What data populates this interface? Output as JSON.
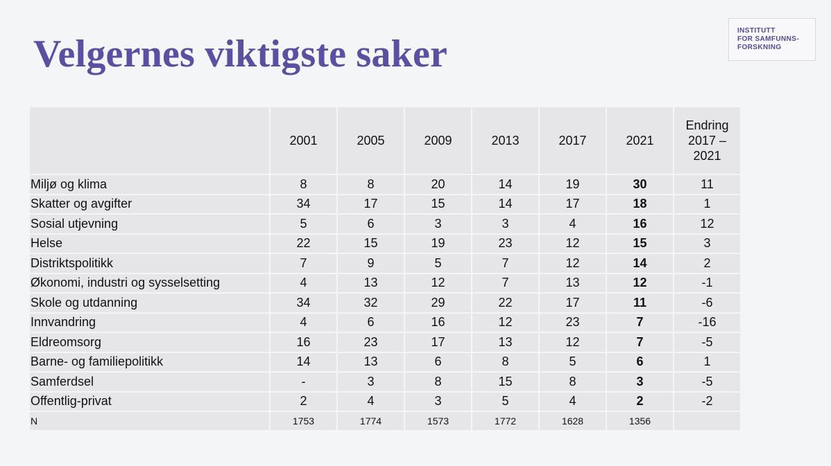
{
  "title": "Velgernes viktigste saker",
  "logo": {
    "lines": [
      "INSTITUTT",
      "FOR SAMFUNNS-",
      "FORSKNING"
    ]
  },
  "table": {
    "years": [
      "2001",
      "2005",
      "2009",
      "2013",
      "2017",
      "2021"
    ],
    "change_header": [
      "Endring",
      "2017 –",
      "2021"
    ],
    "rows": [
      {
        "label": "Miljø og klima",
        "values": [
          "8",
          "8",
          "20",
          "14",
          "19",
          "30"
        ],
        "change": "11"
      },
      {
        "label": "Skatter og avgifter",
        "values": [
          "34",
          "17",
          "15",
          "14",
          "17",
          "18"
        ],
        "change": "1"
      },
      {
        "label": "Sosial utjevning",
        "values": [
          "5",
          "6",
          "3",
          "3",
          "4",
          "16"
        ],
        "change": "12"
      },
      {
        "label": "Helse",
        "values": [
          "22",
          "15",
          "19",
          "23",
          "12",
          "15"
        ],
        "change": "3"
      },
      {
        "label": "Distriktspolitikk",
        "values": [
          "7",
          "9",
          "5",
          "7",
          "12",
          "14"
        ],
        "change": "2"
      },
      {
        "label": "Økonomi, industri og sysselsetting",
        "values": [
          "4",
          "13",
          "12",
          "7",
          "13",
          "12"
        ],
        "change": "-1"
      },
      {
        "label": "Skole og utdanning",
        "values": [
          "34",
          "32",
          "29",
          "22",
          "17",
          "11"
        ],
        "change": "-6"
      },
      {
        "label": "Innvandring",
        "values": [
          "4",
          "6",
          "16",
          "12",
          "23",
          "7"
        ],
        "change": "-16"
      },
      {
        "label": "Eldreomsorg",
        "values": [
          "16",
          "23",
          "17",
          "13",
          "12",
          "7"
        ],
        "change": "-5"
      },
      {
        "label": "Barne- og familiepolitikk",
        "values": [
          "14",
          "13",
          "6",
          "8",
          "5",
          "6"
        ],
        "change": "1"
      },
      {
        "label": "Samferdsel",
        "values": [
          "-",
          "3",
          "8",
          "15",
          "8",
          "3"
        ],
        "change": "-5"
      },
      {
        "label": "Offentlig-privat",
        "values": [
          "2",
          "4",
          "3",
          "5",
          "4",
          "2"
        ],
        "change": "-2"
      }
    ],
    "n_row": {
      "label": "N",
      "values": [
        "1753",
        "1774",
        "1573",
        "1772",
        "1628",
        "1356"
      ],
      "change": ""
    }
  }
}
